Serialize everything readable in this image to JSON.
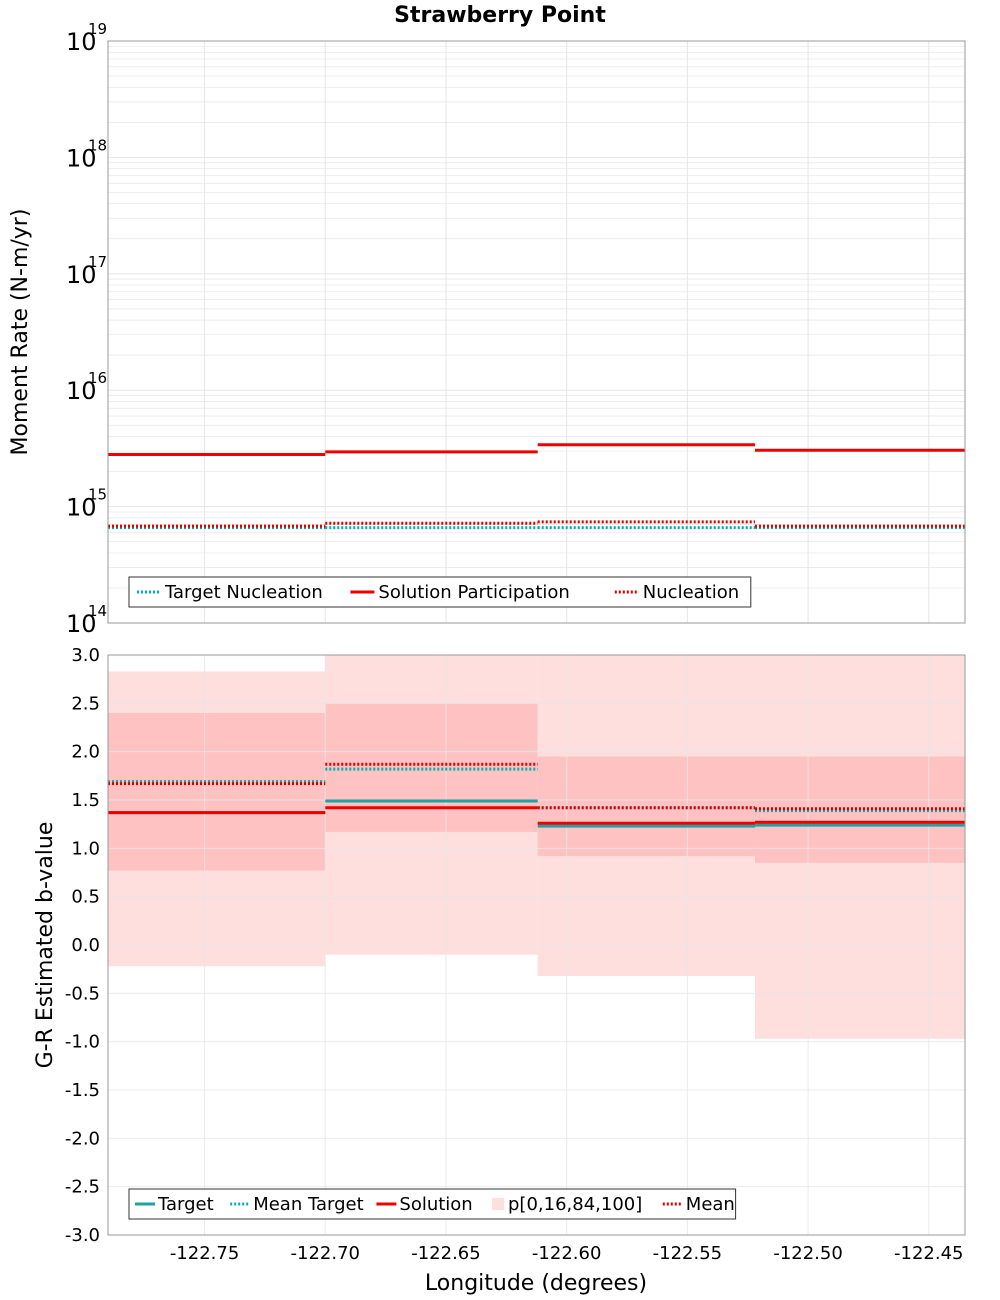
{
  "title": "Strawberry Point",
  "colors": {
    "target": "#1ca3a3",
    "target_mean": "#00b0b0",
    "solution": "#ee0000",
    "mean": "#dd0000",
    "band_outer": "#ffdede",
    "band_inner": "#ffc2c2",
    "grid": "#e6e6e6"
  },
  "chart_data": [
    {
      "type": "line",
      "panel": "moment-rate",
      "xlabel": "Longitude (degrees)",
      "ylabel": "Moment Rate (N-m/yr)",
      "yscale": "log",
      "ylim": [
        100000000000000.0,
        1e+19
      ],
      "xlim": [
        -122.79,
        -122.435
      ],
      "ytick_bases": [
        "10",
        "10",
        "10",
        "10",
        "10",
        "10"
      ],
      "ytick_exponents": [
        "14",
        "15",
        "16",
        "17",
        "18",
        "19"
      ],
      "ytick_values": [
        100000000000000.0,
        1000000000000000.0,
        1e+16,
        1e+17,
        1e+18,
        1e+19
      ],
      "grid": true,
      "legend_placement": "bottom-left",
      "bins": [
        [
          -122.79,
          -122.7
        ],
        [
          -122.7,
          -122.612
        ],
        [
          -122.612,
          -122.522
        ],
        [
          -122.522,
          -122.435
        ]
      ],
      "series": [
        {
          "name": "Target Nucleation",
          "style": "dotted",
          "color_key": "target_mean",
          "values": [
            660000000000000.0,
            660000000000000.0,
            660000000000000.0,
            660000000000000.0
          ]
        },
        {
          "name": "Solution Participation",
          "style": "solid",
          "color_key": "solution",
          "values": [
            2800000000000000.0,
            2950000000000000.0,
            3400000000000000.0,
            3050000000000000.0
          ]
        },
        {
          "name": "Nucleation",
          "style": "dotted",
          "color_key": "mean",
          "values": [
            680000000000000.0,
            720000000000000.0,
            740000000000000.0,
            680000000000000.0
          ]
        }
      ]
    },
    {
      "type": "line",
      "panel": "b-value",
      "xlabel": "Longitude (degrees)",
      "ylabel": "G-R Estimated b-value",
      "ylim": [
        -3.0,
        3.0
      ],
      "xlim": [
        -122.79,
        -122.435
      ],
      "yticks": [
        "-3.0",
        "-2.5",
        "-2.0",
        "-1.5",
        "-1.0",
        "-0.5",
        "0.0",
        "0.5",
        "1.0",
        "1.5",
        "2.0",
        "2.5",
        "3.0"
      ],
      "xticks": [
        "-122.75",
        "-122.70",
        "-122.65",
        "-122.60",
        "-122.55",
        "-122.50",
        "-122.45"
      ],
      "grid": true,
      "legend_placement": "bottom-left",
      "bins": [
        [
          -122.79,
          -122.7
        ],
        [
          -122.7,
          -122.612
        ],
        [
          -122.612,
          -122.522
        ],
        [
          -122.522,
          -122.435
        ]
      ],
      "bands": {
        "name": "p[0,16,84,100]",
        "p0": [
          -0.22,
          -0.1,
          -0.32,
          -0.97
        ],
        "p16": [
          0.77,
          1.17,
          0.92,
          0.85
        ],
        "p84": [
          2.4,
          2.5,
          1.95,
          1.95
        ],
        "p100": [
          2.83,
          3.0,
          3.0,
          3.0
        ]
      },
      "series": [
        {
          "name": "Target",
          "style": "solid",
          "color_key": "target",
          "values": [
            1.37,
            1.49,
            1.23,
            1.24
          ]
        },
        {
          "name": "Mean Target",
          "style": "dotted",
          "color_key": "target_mean",
          "values": [
            1.69,
            1.82,
            1.42,
            1.39
          ]
        },
        {
          "name": "Solution",
          "style": "solid",
          "color_key": "solution",
          "values": [
            1.37,
            1.42,
            1.26,
            1.27
          ]
        },
        {
          "name": "Mean",
          "style": "dotted",
          "color_key": "mean",
          "values": [
            1.67,
            1.87,
            1.42,
            1.41
          ]
        }
      ]
    }
  ]
}
